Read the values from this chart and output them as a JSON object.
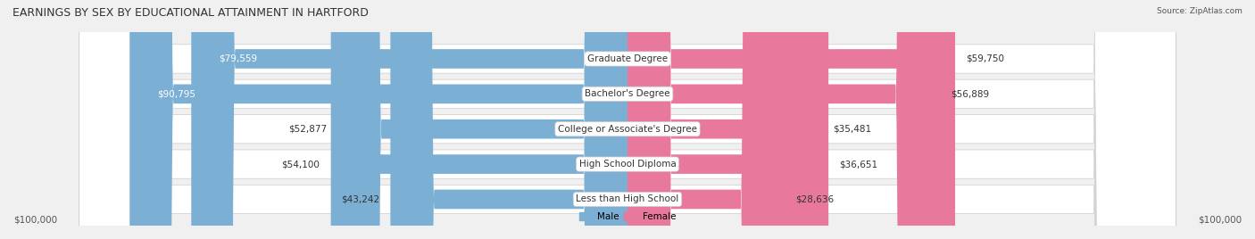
{
  "title": "EARNINGS BY SEX BY EDUCATIONAL ATTAINMENT IN HARTFORD",
  "source": "Source: ZipAtlas.com",
  "categories": [
    "Less than High School",
    "High School Diploma",
    "College or Associate's Degree",
    "Bachelor's Degree",
    "Graduate Degree"
  ],
  "male_values": [
    43242,
    54100,
    52877,
    90795,
    79559
  ],
  "female_values": [
    28636,
    36651,
    35481,
    56889,
    59750
  ],
  "male_color": "#7bafd4",
  "female_color": "#e8799c",
  "max_value": 100000,
  "bg_color": "#f0f0f0",
  "bar_bg_color": "#e8e8e8",
  "title_fontsize": 9,
  "label_fontsize": 7.5,
  "value_fontsize": 7.5,
  "axis_label": "$100,000"
}
